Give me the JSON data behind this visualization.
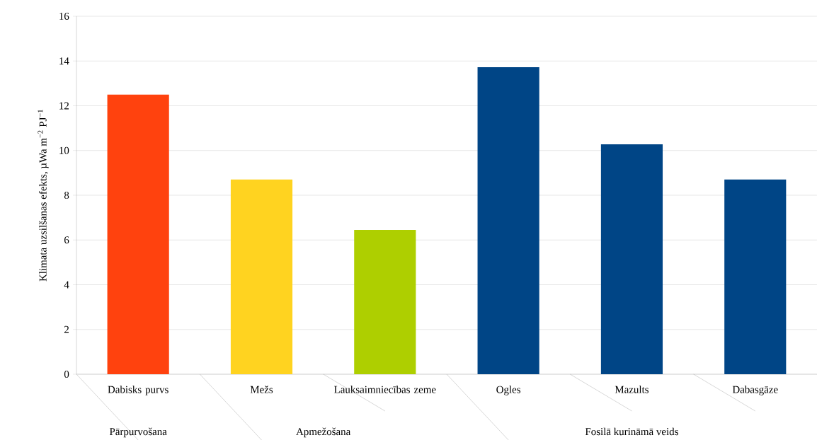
{
  "chart_data": {
    "type": "bar",
    "categories": [
      "Dabisks purvs",
      "Mežs",
      "Lauksaimniecības zeme",
      "Ogles",
      "Mazults",
      "Dabasgāze"
    ],
    "values": [
      12.5,
      8.7,
      6.45,
      13.72,
      10.28,
      8.7
    ],
    "colors": [
      "#ff420e",
      "#ffd320",
      "#aecf00",
      "#004586",
      "#004586",
      "#004586"
    ],
    "ylabel": "Klimata uzsilšanas efekts, µWa m$^{−2}$ PJ$^{−1}$",
    "ylim": [
      0,
      16
    ],
    "yticks": [
      0,
      2,
      4,
      6,
      8,
      10,
      12,
      14,
      16
    ],
    "grid": "y",
    "annotations": [
      "Pārpurvošana",
      "Apmežošana",
      "Fosilā kurināmā veids"
    ]
  }
}
